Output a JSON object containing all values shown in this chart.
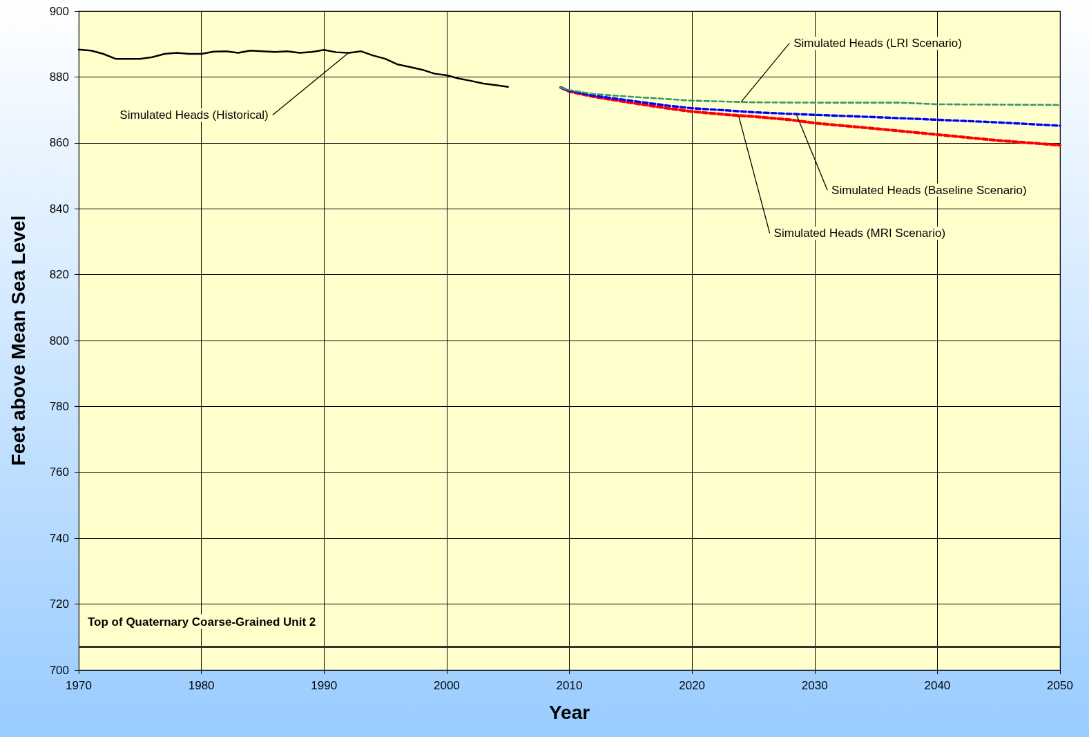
{
  "chart_data": {
    "type": "line",
    "xlabel": "Year",
    "ylabel": "Feet above Mean Sea Level",
    "xlim": [
      1970,
      2050
    ],
    "xticks": [
      1970,
      1980,
      1990,
      2000,
      2010,
      2020,
      2030,
      2040,
      2050
    ],
    "ylim": [
      700,
      900
    ],
    "yticks": [
      700,
      720,
      740,
      760,
      780,
      800,
      820,
      840,
      860,
      880,
      900
    ],
    "grid": true,
    "marker": "none",
    "series": [
      {
        "color": "#000000",
        "line_style": "solid",
        "x": [
          1970,
          1971,
          1972,
          1973,
          1974,
          1975,
          1976,
          1977,
          1978,
          1979,
          1980,
          1981,
          1982,
          1983,
          1984,
          1985,
          1986,
          1987,
          1988,
          1989,
          1990,
          1991,
          1992,
          1993,
          1994,
          1995,
          1996,
          1997,
          1998,
          1999,
          2000,
          2001,
          2002,
          2003,
          2004,
          2005
        ],
        "values": [
          888.3,
          888,
          887,
          885.5,
          885.5,
          885.5,
          886,
          887,
          887.3,
          887,
          887,
          887.7,
          887.8,
          887.3,
          888,
          887.8,
          887.6,
          887.8,
          887.3,
          887.6,
          888.2,
          887.5,
          887.3,
          887.8,
          886.5,
          885.5,
          883.8,
          883,
          882.2,
          881,
          880.5,
          879.5,
          878.8,
          878,
          877.5,
          877
        ]
      },
      {
        "color": "#339966",
        "line_style": "dashed",
        "x": [
          2009.3,
          2010,
          2012,
          2015,
          2018,
          2020,
          2023,
          2025,
          2030,
          2037,
          2040,
          2045,
          2050
        ],
        "values": [
          876.8,
          876,
          874.8,
          874,
          873.3,
          872.8,
          872.5,
          872.3,
          872.2,
          872.2,
          871.7,
          871.6,
          871.5
        ]
      },
      {
        "color": "#0000ff",
        "line_style": "dashed",
        "x": [
          2009.3,
          2010,
          2012,
          2015,
          2018,
          2020,
          2023,
          2025,
          2028,
          2030,
          2035,
          2040,
          2045,
          2050
        ],
        "values": [
          876.8,
          875.8,
          874.3,
          872.8,
          871.3,
          870.5,
          869.8,
          869.3,
          868.8,
          868.5,
          867.8,
          867,
          866.2,
          865.2
        ]
      },
      {
        "color": "#ff0000",
        "line_style": "dashed",
        "x": [
          2009.3,
          2010,
          2012,
          2015,
          2018,
          2020,
          2023,
          2025,
          2028,
          2030,
          2035,
          2040,
          2045,
          2050
        ],
        "values": [
          876.8,
          875.6,
          874,
          872.2,
          870.5,
          869.5,
          868.5,
          868,
          867,
          866,
          864.3,
          862.5,
          860.7,
          859.3
        ]
      }
    ],
    "ref_lines": [
      {
        "axis": "y",
        "value": 707,
        "label": "Top of Quaternary Coarse-Grained Unit 2",
        "color": "#333333",
        "line_style": "solid"
      }
    ],
    "annotations": [
      {
        "text": "Simulated Heads (Historical)",
        "x": 1992,
        "y": 887.3
      },
      {
        "text": "Simulated Heads (LRI Scenario)",
        "x": 2024,
        "y": 872.4
      },
      {
        "text": "Simulated Heads (Baseline Scenario)",
        "x": 2028.5,
        "y": 868.7
      },
      {
        "text": "Simulated Heads (MRI Scenario)",
        "x": 2023.8,
        "y": 868.2
      }
    ]
  }
}
